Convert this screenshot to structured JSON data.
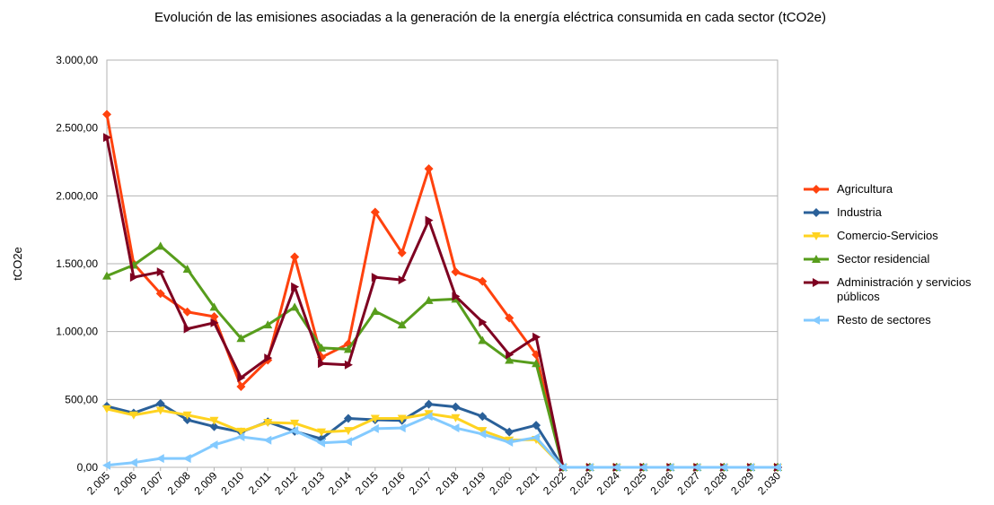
{
  "chart_data": {
    "type": "line",
    "title": "Evolución de las emisiones asociadas a la generación de la energía eléctrica consumida en cada sector (tCO2e)",
    "y_label": "tCO2e",
    "categories": [
      "2.005",
      "2.006",
      "2.007",
      "2.008",
      "2.009",
      "2.010",
      "2.011",
      "2.012",
      "2.013",
      "2.014",
      "2.015",
      "2.016",
      "2.017",
      "2.018",
      "2.019",
      "2.020",
      "2.021",
      "2.022",
      "2.023",
      "2.024",
      "2.025",
      "2.026",
      "2.027",
      "2.028",
      "2.029",
      "2.030"
    ],
    "ylim": [
      0,
      3000
    ],
    "yticks": [
      {
        "value": 0,
        "label": "0,00"
      },
      {
        "value": 500,
        "label": "500,00"
      },
      {
        "value": 1000,
        "label": "1.000,00"
      },
      {
        "value": 1500,
        "label": "1.500,00"
      },
      {
        "value": 2000,
        "label": "2.000,00"
      },
      {
        "value": 2500,
        "label": "2.500,00"
      },
      {
        "value": 3000,
        "label": "3.000,00"
      }
    ],
    "grid": true,
    "legend": "right",
    "series": [
      {
        "name": "Agricultura",
        "color": "#ff420e",
        "marker": "diamond",
        "values": [
          2600,
          1500,
          1280,
          1145,
          1110,
          595,
          790,
          1550,
          810,
          910,
          1880,
          1580,
          2200,
          1440,
          1370,
          1100,
          830,
          0,
          0,
          0,
          0,
          0,
          0,
          0,
          0,
          0
        ]
      },
      {
        "name": "Industria",
        "color": "#2a6099",
        "marker": "diamond",
        "values": [
          450,
          400,
          470,
          350,
          300,
          260,
          335,
          265,
          210,
          360,
          350,
          345,
          465,
          445,
          375,
          260,
          310,
          0,
          0,
          0,
          0,
          0,
          0,
          0,
          0,
          0
        ]
      },
      {
        "name": "Comercio-Servicios",
        "color": "#ffd320",
        "marker": "triangle-down",
        "values": [
          430,
          385,
          420,
          385,
          345,
          265,
          330,
          325,
          260,
          270,
          360,
          360,
          395,
          365,
          270,
          200,
          205,
          0,
          0,
          0,
          0,
          0,
          0,
          0,
          0,
          0
        ]
      },
      {
        "name": "Sector residencial",
        "color": "#579d1c",
        "marker": "triangle-up",
        "values": [
          1410,
          1490,
          1630,
          1460,
          1180,
          950,
          1050,
          1180,
          880,
          870,
          1150,
          1050,
          1230,
          1240,
          935,
          790,
          765,
          0,
          0,
          0,
          0,
          0,
          0,
          0,
          0,
          0
        ]
      },
      {
        "name": "Administración y servicios públicos",
        "color": "#7e0021",
        "marker": "triangle-right",
        "values": [
          2430,
          1400,
          1440,
          1020,
          1065,
          660,
          805,
          1330,
          765,
          755,
          1400,
          1380,
          1820,
          1260,
          1070,
          830,
          960,
          0,
          0,
          0,
          0,
          0,
          0,
          0,
          0,
          0
        ]
      },
      {
        "name": "Resto de sectores",
        "color": "#83caff",
        "marker": "triangle-left",
        "values": [
          15,
          35,
          65,
          65,
          165,
          225,
          200,
          270,
          180,
          190,
          285,
          290,
          375,
          290,
          245,
          185,
          220,
          0,
          0,
          0,
          0,
          0,
          0,
          0,
          0,
          0
        ]
      }
    ]
  }
}
